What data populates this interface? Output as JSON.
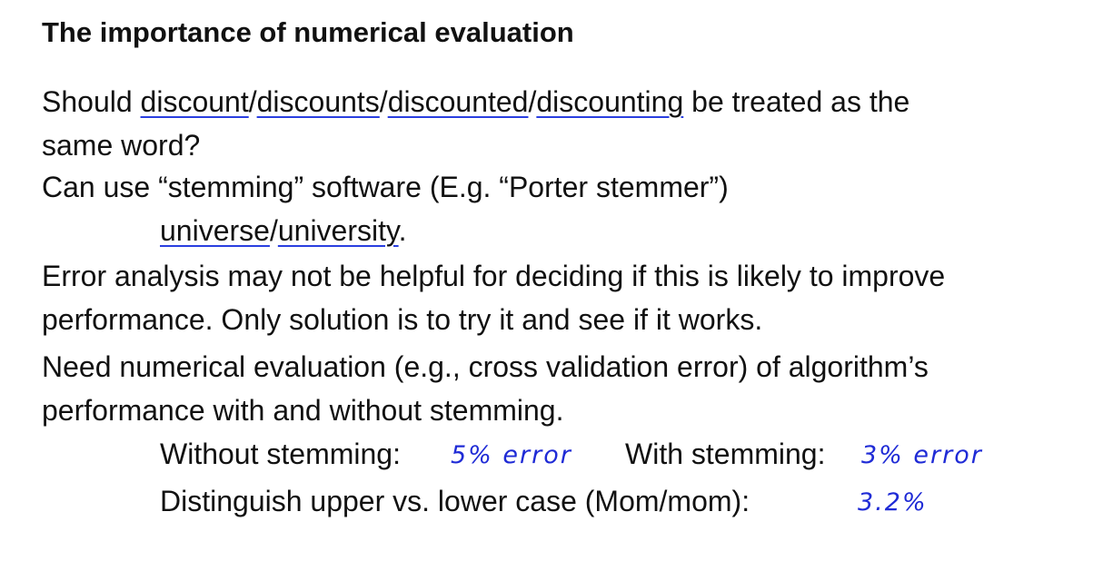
{
  "title": "The importance of numerical evaluation",
  "colors": {
    "text": "#111111",
    "handwriting": "#1f2bd6",
    "underline": "#2a3fe0"
  },
  "lines": {
    "l1a": "Should ",
    "w1": "discount",
    "s1": "/",
    "w2": "discounts",
    "s2": "/",
    "w3": "discounted",
    "s3": "/",
    "w4": "discounting",
    "l1b": " be treated as the",
    "l2": "same word?",
    "l3": "Can use “stemming” software (E.g. “Porter stemmer”)",
    "u1": "universe",
    "us": "/",
    "u2": "university",
    "ue": ".",
    "l5": "Error analysis may not be helpful for deciding if this is likely to improve",
    "l6": "performance. Only solution is to try it and see if it works.",
    "l7": "Need numerical evaluation (e.g., cross validation error) of algorithm’s",
    "l8": "performance with and without stemming.",
    "without_label": "Without stemming:",
    "without_note": "5% error",
    "with_label": "With stemming:",
    "with_note": "3% error",
    "case_label": "Distinguish upper vs. lower case (Mom/mom):",
    "case_note": "3.2%"
  }
}
